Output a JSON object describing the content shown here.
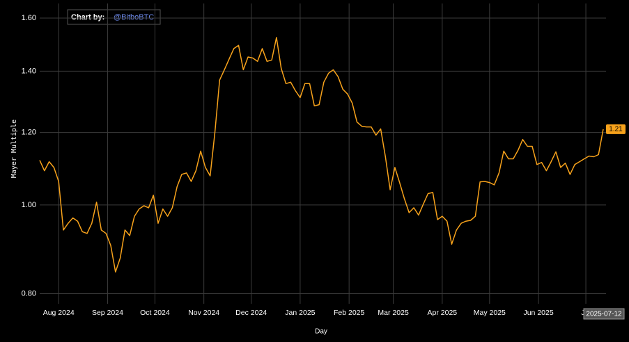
{
  "chart_data": {
    "type": "line",
    "annotation": {
      "prefix": "Chart by:",
      "handle": "@BitboBTC"
    },
    "xlabel": "Day",
    "ylabel": "Mayer Multiple",
    "yscale": "log",
    "grid": true,
    "color": "#f7a21b",
    "ylim": [
      0.78,
      1.66
    ],
    "yticks": [
      {
        "value": 0.8,
        "label": "0.80"
      },
      {
        "value": 1.0,
        "label": "1.00"
      },
      {
        "value": 1.2,
        "label": "1.20"
      },
      {
        "value": 1.4,
        "label": "1.40"
      },
      {
        "value": 1.6,
        "label": "1.60"
      }
    ],
    "xlim": [
      "2024-07-20",
      "2025-07-12"
    ],
    "xticks": [
      {
        "value": "2024-08-01",
        "label": "Aug 2024"
      },
      {
        "value": "2024-09-01",
        "label": "Sep 2024"
      },
      {
        "value": "2024-10-01",
        "label": "Oct 2024"
      },
      {
        "value": "2024-11-01",
        "label": "Nov 2024"
      },
      {
        "value": "2024-12-01",
        "label": "Dec 2024"
      },
      {
        "value": "2025-01-01",
        "label": "Jan 2025"
      },
      {
        "value": "2025-02-01",
        "label": "Feb 2025"
      },
      {
        "value": "2025-03-01",
        "label": "Mar 2025"
      },
      {
        "value": "2025-04-01",
        "label": "Apr 2025"
      },
      {
        "value": "2025-05-01",
        "label": "May 2025"
      },
      {
        "value": "2025-06-01",
        "label": "Jun 2025"
      },
      {
        "value": "2025-07-01",
        "label": "Jul"
      }
    ],
    "x": [
      "2024-07-20",
      "2024-07-23",
      "2024-07-26",
      "2024-07-29",
      "2024-08-01",
      "2024-08-04",
      "2024-08-07",
      "2024-08-10",
      "2024-08-13",
      "2024-08-16",
      "2024-08-19",
      "2024-08-22",
      "2024-08-25",
      "2024-08-28",
      "2024-08-31",
      "2024-09-03",
      "2024-09-06",
      "2024-09-09",
      "2024-09-12",
      "2024-09-15",
      "2024-09-18",
      "2024-09-21",
      "2024-09-24",
      "2024-09-27",
      "2024-09-30",
      "2024-10-03",
      "2024-10-06",
      "2024-10-09",
      "2024-10-12",
      "2024-10-15",
      "2024-10-18",
      "2024-10-21",
      "2024-10-24",
      "2024-10-27",
      "2024-10-30",
      "2024-11-02",
      "2024-11-05",
      "2024-11-08",
      "2024-11-11",
      "2024-11-14",
      "2024-11-17",
      "2024-11-20",
      "2024-11-23",
      "2024-11-26",
      "2024-11-29",
      "2024-12-02",
      "2024-12-05",
      "2024-12-08",
      "2024-12-11",
      "2024-12-14",
      "2024-12-17",
      "2024-12-20",
      "2024-12-23",
      "2024-12-26",
      "2024-12-29",
      "2025-01-01",
      "2025-01-04",
      "2025-01-07",
      "2025-01-10",
      "2025-01-13",
      "2025-01-16",
      "2025-01-19",
      "2025-01-22",
      "2025-01-25",
      "2025-01-28",
      "2025-01-31",
      "2025-02-03",
      "2025-02-06",
      "2025-02-09",
      "2025-02-12",
      "2025-02-15",
      "2025-02-18",
      "2025-02-21",
      "2025-02-24",
      "2025-02-27",
      "2025-03-02",
      "2025-03-05",
      "2025-03-08",
      "2025-03-11",
      "2025-03-14",
      "2025-03-17",
      "2025-03-20",
      "2025-03-23",
      "2025-03-26",
      "2025-03-29",
      "2025-04-01",
      "2025-04-04",
      "2025-04-07",
      "2025-04-10",
      "2025-04-13",
      "2025-04-16",
      "2025-04-19",
      "2025-04-22",
      "2025-04-25",
      "2025-04-28",
      "2025-05-01",
      "2025-05-04",
      "2025-05-07",
      "2025-05-10",
      "2025-05-13",
      "2025-05-16",
      "2025-05-19",
      "2025-05-22",
      "2025-05-25",
      "2025-05-28",
      "2025-05-31",
      "2025-06-03",
      "2025-06-06",
      "2025-06-09",
      "2025-06-12",
      "2025-06-15",
      "2025-06-18",
      "2025-06-21",
      "2025-06-24",
      "2025-06-27",
      "2025-06-30",
      "2025-07-03",
      "2025-07-06",
      "2025-07-09",
      "2025-07-12"
    ],
    "values": [
      1.119,
      1.09,
      1.115,
      1.099,
      1.061,
      0.939,
      0.955,
      0.968,
      0.96,
      0.935,
      0.931,
      0.955,
      1.007,
      0.939,
      0.931,
      0.903,
      0.845,
      0.875,
      0.939,
      0.926,
      0.972,
      0.99,
      0.998,
      0.993,
      1.025,
      0.955,
      0.99,
      0.972,
      0.993,
      1.047,
      1.08,
      1.084,
      1.061,
      1.09,
      1.145,
      1.099,
      1.076,
      1.2,
      1.369,
      1.405,
      1.443,
      1.482,
      1.494,
      1.405,
      1.451,
      1.447,
      1.435,
      1.482,
      1.435,
      1.44,
      1.524,
      1.41,
      1.357,
      1.362,
      1.333,
      1.31,
      1.357,
      1.357,
      1.283,
      1.287,
      1.362,
      1.393,
      1.405,
      1.381,
      1.338,
      1.322,
      1.292,
      1.232,
      1.219,
      1.217,
      1.217,
      1.192,
      1.211,
      1.129,
      1.039,
      1.099,
      1.058,
      1.016,
      0.981,
      0.993,
      0.975,
      1.002,
      1.029,
      1.032,
      0.964,
      0.972,
      0.96,
      0.906,
      0.939,
      0.955,
      0.96,
      0.962,
      0.972,
      1.06,
      1.061,
      1.058,
      1.052,
      1.084,
      1.145,
      1.123,
      1.123,
      1.147,
      1.179,
      1.159,
      1.159,
      1.107,
      1.113,
      1.09,
      1.115,
      1.143,
      1.099,
      1.111,
      1.08,
      1.107,
      1.115,
      1.123,
      1.131,
      1.129,
      1.135,
      1.21
    ]
  }
}
